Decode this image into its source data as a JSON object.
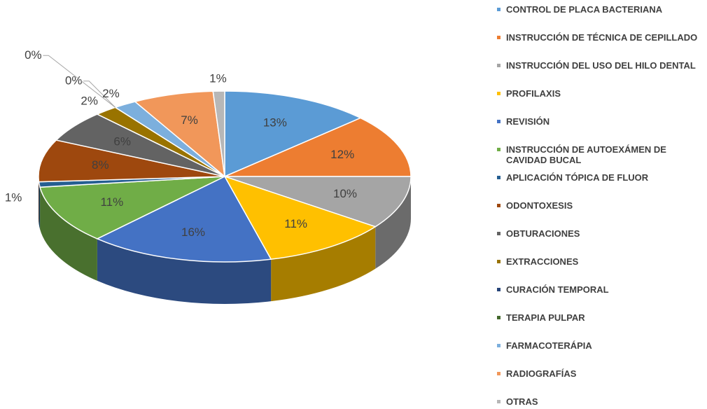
{
  "chart_data": {
    "type": "pie3d",
    "categories": [
      "CONTROL DE PLACA BACTERIANA",
      "INSTRUCCIÓN DE TÉCNICA DE CEPILLADO",
      "INSTRUCCIÓN DEL USO DEL HILO DENTAL",
      "PROFILAXIS",
      "REVISIÓN",
      "INSTRUCCIÓN DE AUTOEXÁMEN DE CAVIDAD BUCAL",
      "APLICACIÓN TÓPICA DE FLUOR",
      "ODONTOXESIS",
      "OBTURACIONES",
      "EXTRACCIONES",
      "CURACIÓN TEMPORAL",
      "TERAPIA PULPAR",
      "FARMACOTERÁPIA",
      "RADIOGRAFÍAS",
      "OTRAS"
    ],
    "values": [
      13,
      12,
      10,
      11,
      16,
      11,
      1,
      8,
      6,
      2,
      0,
      0,
      2,
      7,
      1
    ],
    "value_labels": [
      "13%",
      "12%",
      "10%",
      "11%",
      "16%",
      "11%",
      "1%",
      "8%",
      "6%",
      "2%",
      "0%",
      "0%",
      "2%",
      "7%",
      "1%"
    ],
    "colors": [
      "#5b9bd5",
      "#ed7d31",
      "#a5a5a5",
      "#ffc000",
      "#4472c4",
      "#70ad47",
      "#255e91",
      "#9e480e",
      "#636363",
      "#997300",
      "#264478",
      "#43682b",
      "#7cafdd",
      "#f1975a",
      "#b7b7b7"
    ]
  }
}
